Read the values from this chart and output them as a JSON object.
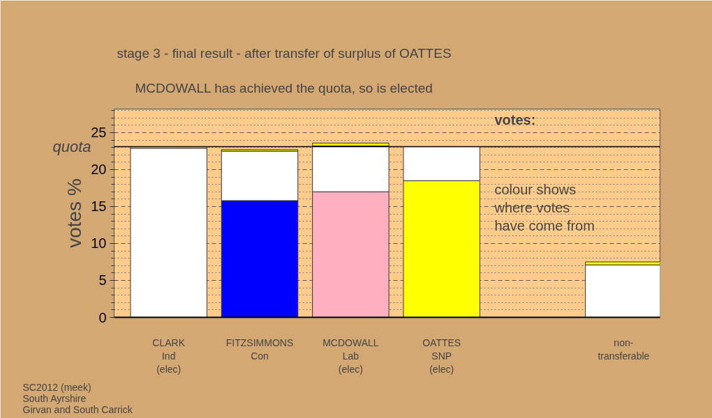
{
  "chart_data": {
    "type": "bar",
    "stacked": true,
    "title": "stage 3 - final result - after transfer of surplus of OATTES",
    "subtitle": "MCDOWALL has achieved the quota, so is elected",
    "ylabel": "votes %",
    "categories": [
      "CLARK\nInd\n(elec)",
      "FITZSIMMONS\nCon",
      "MCDOWALL\nLab\n(elec)",
      "OATTES\nSNP\n(elec)",
      null,
      "non-\ntransferable"
    ],
    "series": [
      {
        "colors": [
          "#ffffff",
          "#0000ff",
          "#ffb0c0",
          "#ffff00",
          null,
          "#ffffff"
        ],
        "values": [
          22.9,
          15.8,
          17.0,
          18.5,
          null,
          7.1
        ]
      },
      {
        "color": "#ffffff",
        "values": [
          null,
          6.7,
          6.2,
          4.6,
          null,
          null
        ]
      },
      {
        "color": "#ffff00",
        "values": [
          0.2,
          0.2,
          0.4,
          null,
          null,
          0.4
        ]
      }
    ],
    "ylim": [
      0,
      28.2
    ],
    "yticks": [
      0,
      {
        "value": 1,
        "label": null
      },
      {
        "value": 2,
        "label": null
      },
      {
        "value": 3,
        "label": null
      },
      {
        "value": 4,
        "label": null
      },
      5,
      {
        "value": 6,
        "label": null
      },
      {
        "value": 7,
        "label": null
      },
      {
        "value": 8,
        "label": null
      },
      {
        "value": 9,
        "label": null
      },
      10,
      {
        "value": 11,
        "label": null
      },
      {
        "value": 12,
        "label": null
      },
      {
        "value": 13,
        "label": null
      },
      {
        "value": 14,
        "label": null
      },
      15,
      {
        "value": 16,
        "label": null
      },
      {
        "value": 17,
        "label": null
      },
      {
        "value": 18,
        "label": null
      },
      {
        "value": 19,
        "label": null
      },
      20,
      {
        "value": 21,
        "label": null
      },
      {
        "value": 22,
        "label": null
      },
      {
        "value": 23,
        "label": null
      },
      {
        "value": 24,
        "label": null
      },
      25,
      {
        "value": 26,
        "label": null
      },
      {
        "value": 27,
        "label": null
      },
      {
        "value": 28,
        "label": null
      }
    ],
    "grid": "y",
    "ref_lines": [
      {
        "axis": "y",
        "value": 23.1,
        "label": "quota",
        "color": "#000000"
      }
    ],
    "annotations": [
      "votes:",
      "colour shows\nwhere votes\nhave come from",
      "SC2012 (meek)\nSouth Ayrshire\nGirvan and South Carrick"
    ]
  }
}
